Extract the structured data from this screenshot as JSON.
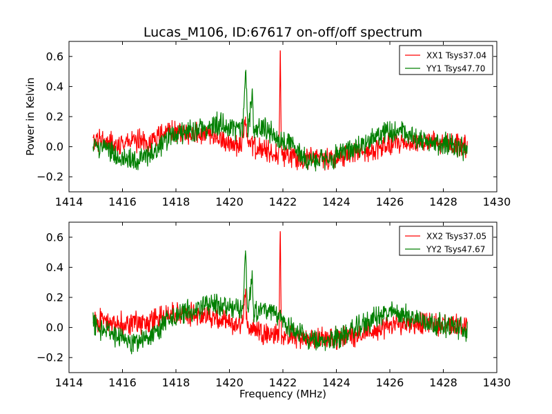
{
  "figure": {
    "title": "Lucas_M106, ID:67617 on-off/off spectrum",
    "xlabel": "Frequency (MHz)",
    "ylabel": "Power in Kelvin"
  },
  "colors": {
    "red": "#ff0000",
    "green": "#007f00"
  },
  "chart_data": [
    {
      "type": "line",
      "title": "Lucas_M106, ID:67617 on-off/off spectrum",
      "xlabel": "",
      "ylabel": "Power in Kelvin",
      "xlim": [
        1414,
        1430
      ],
      "ylim": [
        -0.3,
        0.7
      ],
      "xticks": [
        1414,
        1416,
        1418,
        1420,
        1422,
        1424,
        1426,
        1428,
        1430
      ],
      "yticks": [
        -0.2,
        0.0,
        0.2,
        0.4,
        0.6
      ],
      "legend_position": "top-right",
      "series": [
        {
          "name": "XX1 Tsys37.04",
          "color": "#ff0000",
          "x": [
            1414.9,
            1415.3,
            1415.7,
            1416.1,
            1416.5,
            1416.9,
            1417.3,
            1417.6,
            1418.0,
            1418.4,
            1418.8,
            1419.2,
            1419.6,
            1420.0,
            1420.3,
            1420.5,
            1420.6,
            1420.7,
            1420.9,
            1421.3,
            1421.7,
            1421.85,
            1421.9,
            1421.95,
            1422.2,
            1422.6,
            1423.0,
            1423.4,
            1423.8,
            1424.2,
            1424.6,
            1425.0,
            1425.4,
            1425.8,
            1426.2,
            1426.6,
            1427.0,
            1427.4,
            1427.8,
            1428.2,
            1428.6,
            1428.9
          ],
          "y": [
            0.03,
            0.05,
            0.02,
            0.03,
            0.04,
            0.02,
            0.06,
            0.09,
            0.1,
            0.08,
            0.09,
            0.07,
            0.05,
            0.02,
            0.01,
            0.05,
            0.2,
            0.0,
            0.0,
            -0.03,
            -0.05,
            -0.05,
            0.64,
            -0.05,
            -0.06,
            -0.07,
            -0.08,
            -0.07,
            -0.08,
            -0.06,
            -0.05,
            -0.04,
            -0.02,
            0.0,
            0.02,
            0.03,
            0.03,
            0.03,
            0.02,
            0.02,
            0.02,
            0.0
          ]
        },
        {
          "name": "YY1 Tsys47.70",
          "color": "#007f00",
          "x": [
            1414.9,
            1415.3,
            1415.7,
            1416.1,
            1416.5,
            1416.9,
            1417.3,
            1417.6,
            1418.0,
            1418.4,
            1418.8,
            1419.2,
            1419.6,
            1420.0,
            1420.3,
            1420.5,
            1420.6,
            1420.7,
            1420.85,
            1420.9,
            1421.0,
            1421.3,
            1421.7,
            1421.9,
            1422.2,
            1422.6,
            1423.0,
            1423.4,
            1423.8,
            1424.2,
            1424.6,
            1425.0,
            1425.4,
            1425.8,
            1426.2,
            1426.6,
            1427.0,
            1427.4,
            1427.8,
            1428.2,
            1428.6,
            1428.9
          ],
          "y": [
            0.02,
            -0.02,
            -0.05,
            -0.08,
            -0.1,
            -0.07,
            -0.02,
            0.05,
            0.08,
            0.1,
            0.12,
            0.14,
            0.15,
            0.14,
            0.12,
            0.13,
            0.5,
            0.08,
            0.38,
            0.1,
            0.12,
            0.12,
            0.08,
            0.06,
            0.02,
            -0.04,
            -0.09,
            -0.1,
            -0.08,
            -0.05,
            -0.02,
            0.02,
            0.06,
            0.09,
            0.1,
            0.08,
            0.06,
            0.04,
            0.02,
            0.01,
            0.0,
            -0.03
          ]
        }
      ]
    },
    {
      "type": "line",
      "title": "",
      "xlabel": "Frequency (MHz)",
      "ylabel": "",
      "xlim": [
        1414,
        1430
      ],
      "ylim": [
        -0.3,
        0.7
      ],
      "xticks": [
        1414,
        1416,
        1418,
        1420,
        1422,
        1424,
        1426,
        1428,
        1430
      ],
      "yticks": [
        -0.2,
        0.0,
        0.2,
        0.4,
        0.6
      ],
      "legend_position": "top-right",
      "series": [
        {
          "name": "XX2 Tsys37.05",
          "color": "#ff0000",
          "x": [
            1414.9,
            1415.3,
            1415.7,
            1416.1,
            1416.5,
            1416.9,
            1417.3,
            1417.6,
            1418.0,
            1418.4,
            1418.8,
            1419.2,
            1419.6,
            1420.0,
            1420.3,
            1420.5,
            1420.6,
            1420.7,
            1420.9,
            1421.3,
            1421.7,
            1421.85,
            1421.9,
            1421.95,
            1422.2,
            1422.6,
            1423.0,
            1423.4,
            1423.8,
            1424.2,
            1424.6,
            1425.0,
            1425.4,
            1425.8,
            1426.2,
            1426.6,
            1427.0,
            1427.4,
            1427.8,
            1428.2,
            1428.6,
            1428.9
          ],
          "y": [
            0.03,
            0.05,
            0.02,
            0.03,
            0.04,
            0.02,
            0.06,
            0.09,
            0.1,
            0.08,
            0.09,
            0.07,
            0.05,
            0.02,
            0.01,
            0.05,
            0.2,
            0.0,
            0.0,
            -0.03,
            -0.05,
            -0.05,
            0.64,
            -0.05,
            -0.06,
            -0.07,
            -0.08,
            -0.07,
            -0.08,
            -0.06,
            -0.05,
            -0.04,
            -0.02,
            0.0,
            0.02,
            0.03,
            0.03,
            0.03,
            0.02,
            0.02,
            0.02,
            0.0
          ]
        },
        {
          "name": "YY2 Tsys47.67",
          "color": "#007f00",
          "x": [
            1414.9,
            1415.3,
            1415.7,
            1416.1,
            1416.5,
            1416.9,
            1417.3,
            1417.6,
            1418.0,
            1418.4,
            1418.8,
            1419.2,
            1419.6,
            1420.0,
            1420.3,
            1420.5,
            1420.6,
            1420.7,
            1420.85,
            1420.9,
            1421.0,
            1421.3,
            1421.7,
            1421.9,
            1422.2,
            1422.6,
            1423.0,
            1423.4,
            1423.8,
            1424.2,
            1424.6,
            1425.0,
            1425.4,
            1425.8,
            1426.2,
            1426.6,
            1427.0,
            1427.4,
            1427.8,
            1428.2,
            1428.6,
            1428.9
          ],
          "y": [
            0.02,
            -0.02,
            -0.05,
            -0.08,
            -0.1,
            -0.07,
            -0.02,
            0.05,
            0.08,
            0.1,
            0.12,
            0.14,
            0.15,
            0.14,
            0.12,
            0.13,
            0.5,
            0.08,
            0.38,
            0.1,
            0.12,
            0.12,
            0.08,
            0.06,
            0.02,
            -0.04,
            -0.09,
            -0.1,
            -0.08,
            -0.05,
            -0.02,
            0.02,
            0.06,
            0.09,
            0.1,
            0.08,
            0.06,
            0.04,
            0.02,
            0.01,
            0.0,
            -0.03
          ]
        }
      ]
    }
  ]
}
